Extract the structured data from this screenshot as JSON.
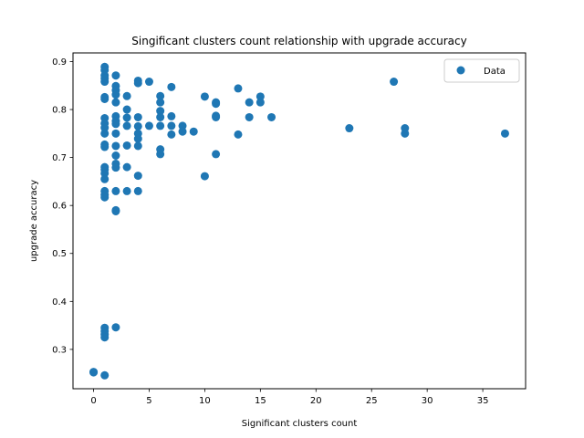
{
  "chart_data": {
    "type": "scatter",
    "title": "Singificant clusters count relationship with upgrade accuracy",
    "xlabel": "Significant clusters count",
    "ylabel": "upgrade accuracy",
    "xlim": [
      -1.85,
      38.85
    ],
    "ylim": [
      0.218,
      0.918
    ],
    "xticks": [
      0,
      5,
      10,
      15,
      20,
      25,
      30,
      35
    ],
    "yticks": [
      0.3,
      0.4,
      0.5,
      0.6,
      0.7,
      0.8,
      0.9
    ],
    "grid": false,
    "legend": {
      "position": "top-right",
      "entries": [
        "Data"
      ]
    },
    "series": [
      {
        "name": "Data",
        "color": "#1f77b4",
        "points": [
          [
            0,
            0.253
          ],
          [
            0,
            0.252
          ],
          [
            1,
            0.889
          ],
          [
            1,
            0.882
          ],
          [
            1,
            0.871
          ],
          [
            1,
            0.865
          ],
          [
            1,
            0.858
          ],
          [
            1,
            0.826
          ],
          [
            1,
            0.822
          ],
          [
            1,
            0.782
          ],
          [
            1,
            0.771
          ],
          [
            1,
            0.762
          ],
          [
            1,
            0.75
          ],
          [
            1,
            0.727
          ],
          [
            1,
            0.722
          ],
          [
            1,
            0.68
          ],
          [
            1,
            0.675
          ],
          [
            1,
            0.667
          ],
          [
            1,
            0.655
          ],
          [
            1,
            0.63
          ],
          [
            1,
            0.622
          ],
          [
            1,
            0.617
          ],
          [
            1,
            0.345
          ],
          [
            1,
            0.338
          ],
          [
            1,
            0.331
          ],
          [
            1,
            0.325
          ],
          [
            1,
            0.246
          ],
          [
            2,
            0.871
          ],
          [
            2,
            0.849
          ],
          [
            2,
            0.84
          ],
          [
            2,
            0.831
          ],
          [
            2,
            0.815
          ],
          [
            2,
            0.786
          ],
          [
            2,
            0.776
          ],
          [
            2,
            0.77
          ],
          [
            2,
            0.75
          ],
          [
            2,
            0.724
          ],
          [
            2,
            0.704
          ],
          [
            2,
            0.687
          ],
          [
            2,
            0.679
          ],
          [
            2,
            0.63
          ],
          [
            2,
            0.59
          ],
          [
            2,
            0.588
          ],
          [
            2,
            0.346
          ],
          [
            3,
            0.828
          ],
          [
            3,
            0.8
          ],
          [
            3,
            0.783
          ],
          [
            3,
            0.766
          ],
          [
            3,
            0.725
          ],
          [
            3,
            0.68
          ],
          [
            3,
            0.63
          ],
          [
            4,
            0.86
          ],
          [
            4,
            0.855
          ],
          [
            4,
            0.784
          ],
          [
            4,
            0.765
          ],
          [
            4,
            0.75
          ],
          [
            4,
            0.739
          ],
          [
            4,
            0.724
          ],
          [
            4,
            0.662
          ],
          [
            4,
            0.63
          ],
          [
            5,
            0.858
          ],
          [
            5,
            0.766
          ],
          [
            6,
            0.828
          ],
          [
            6,
            0.815
          ],
          [
            6,
            0.797
          ],
          [
            6,
            0.784
          ],
          [
            6,
            0.766
          ],
          [
            6,
            0.717
          ],
          [
            6,
            0.707
          ],
          [
            7,
            0.847
          ],
          [
            7,
            0.786
          ],
          [
            7,
            0.766
          ],
          [
            7,
            0.748
          ],
          [
            8,
            0.766
          ],
          [
            8,
            0.754
          ],
          [
            9,
            0.754
          ],
          [
            10,
            0.827
          ],
          [
            10,
            0.661
          ],
          [
            11,
            0.815
          ],
          [
            11,
            0.812
          ],
          [
            11,
            0.787
          ],
          [
            11,
            0.784
          ],
          [
            11,
            0.707
          ],
          [
            13,
            0.844
          ],
          [
            13,
            0.748
          ],
          [
            14,
            0.815
          ],
          [
            14,
            0.784
          ],
          [
            15,
            0.827
          ],
          [
            15,
            0.815
          ],
          [
            16,
            0.784
          ],
          [
            23,
            0.761
          ],
          [
            27,
            0.858
          ],
          [
            28,
            0.761
          ],
          [
            28,
            0.75
          ],
          [
            37,
            0.75
          ]
        ]
      }
    ]
  }
}
